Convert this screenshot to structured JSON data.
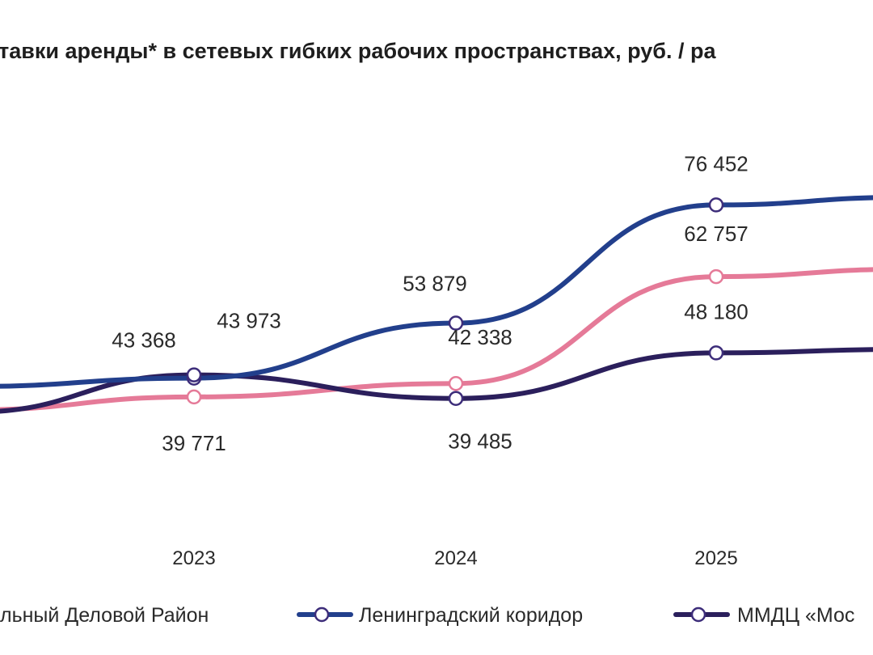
{
  "chart_data": {
    "type": "line",
    "title": "тавки аренды* в сетевых гибких рабочих пространствах, руб. / ра",
    "categories": [
      "2023",
      "2024",
      "2025"
    ],
    "series": [
      {
        "name": "льный Деловой Район",
        "color": "#e57a98",
        "values": [
          39771,
          42338,
          62757
        ],
        "labels": [
          "39 771",
          "42 338",
          "62 757"
        ]
      },
      {
        "name": "Ленинградский коридор",
        "color": "#223f8c",
        "values": [
          43368,
          53879,
          76452
        ],
        "labels": [
          "43 368",
          "53 879",
          "76 452"
        ]
      },
      {
        "name": "ММДЦ «Мос",
        "color": "#2b1f5c",
        "values": [
          43973,
          39485,
          48180
        ],
        "labels": [
          "43 973",
          "39 485",
          "48 180"
        ]
      }
    ],
    "grid": false,
    "legend": "bottom"
  }
}
